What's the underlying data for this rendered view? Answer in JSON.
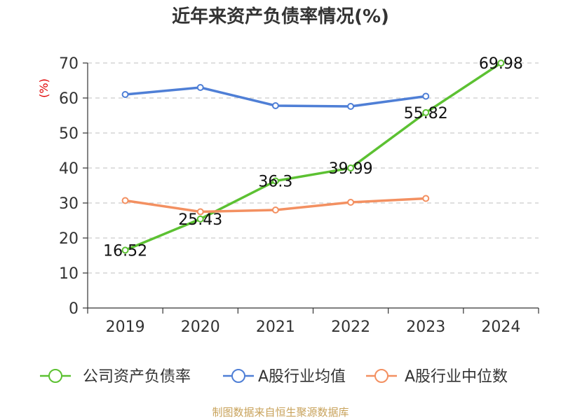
{
  "chart_data": {
    "type": "line",
    "title": "近年来资产负债率情况(%)",
    "ylabel": "(%)",
    "xlabel": "",
    "ylim": [
      0,
      70
    ],
    "yticks": [
      0,
      10,
      20,
      30,
      40,
      50,
      60,
      70
    ],
    "categories": [
      "2019",
      "2020",
      "2021",
      "2022",
      "2023",
      "2024"
    ],
    "grid": true,
    "legend_position": "bottom",
    "series": [
      {
        "name": "公司资产负债率",
        "color": "#5cc132",
        "values": [
          16.52,
          25.43,
          36.3,
          39.99,
          55.82,
          69.98
        ],
        "data_labels": [
          "16.52",
          "25.43",
          "36.3",
          "39.99",
          "55.82",
          "69.98"
        ]
      },
      {
        "name": "A股行业均值",
        "color": "#4f7fd6",
        "values": [
          61.0,
          63.0,
          57.8,
          57.6,
          60.5,
          null
        ]
      },
      {
        "name": "A股行业中位数",
        "color": "#f39061",
        "values": [
          30.7,
          27.5,
          28.0,
          30.2,
          31.3,
          null
        ]
      }
    ],
    "source": "制图数据来自恒生聚源数据库"
  }
}
